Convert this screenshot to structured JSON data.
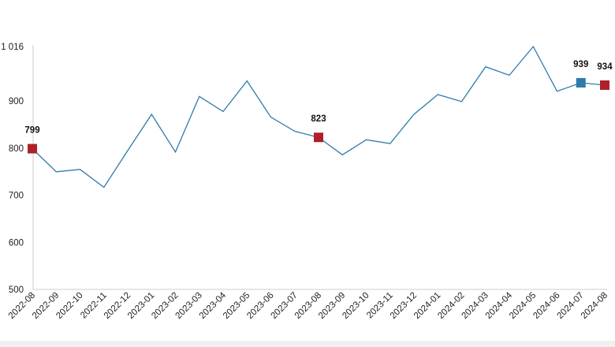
{
  "chart_data": {
    "type": "line",
    "title": "",
    "xlabel": "",
    "ylabel": "",
    "ylim": [
      500,
      1016
    ],
    "yticks": [
      500,
      600,
      700,
      800,
      900,
      1016
    ],
    "ytick_labels": [
      "500",
      "600",
      "700",
      "800",
      "900",
      "1 016"
    ],
    "grid": false,
    "line_color": "#2e7bad",
    "categories": [
      "2022-08",
      "2022-09",
      "2022-10",
      "2022-11",
      "2022-12",
      "2023-01",
      "2023-02",
      "2023-03",
      "2023-04",
      "2023-05",
      "2023-06",
      "2023-07",
      "2023-08",
      "2023-09",
      "2023-10",
      "2023-11",
      "2023-12",
      "2024-01",
      "2024-02",
      "2024-03",
      "2024-04",
      "2024-05",
      "2024-06",
      "2024-07",
      "2024-08"
    ],
    "series": [
      {
        "values": [
          799,
          750,
          755,
          717,
          795,
          872,
          792,
          910,
          878,
          943,
          866,
          836,
          823,
          786,
          818,
          810,
          872,
          914,
          899,
          973,
          955,
          1016,
          921,
          939,
          934
        ]
      }
    ],
    "highlights": [
      {
        "index": 0,
        "label": "799",
        "color": "#b0202a"
      },
      {
        "index": 12,
        "label": "823",
        "color": "#b0202a"
      },
      {
        "index": 23,
        "label": "939",
        "color": "#2e7bad"
      },
      {
        "index": 24,
        "label": "934",
        "color": "#b0202a"
      }
    ]
  }
}
